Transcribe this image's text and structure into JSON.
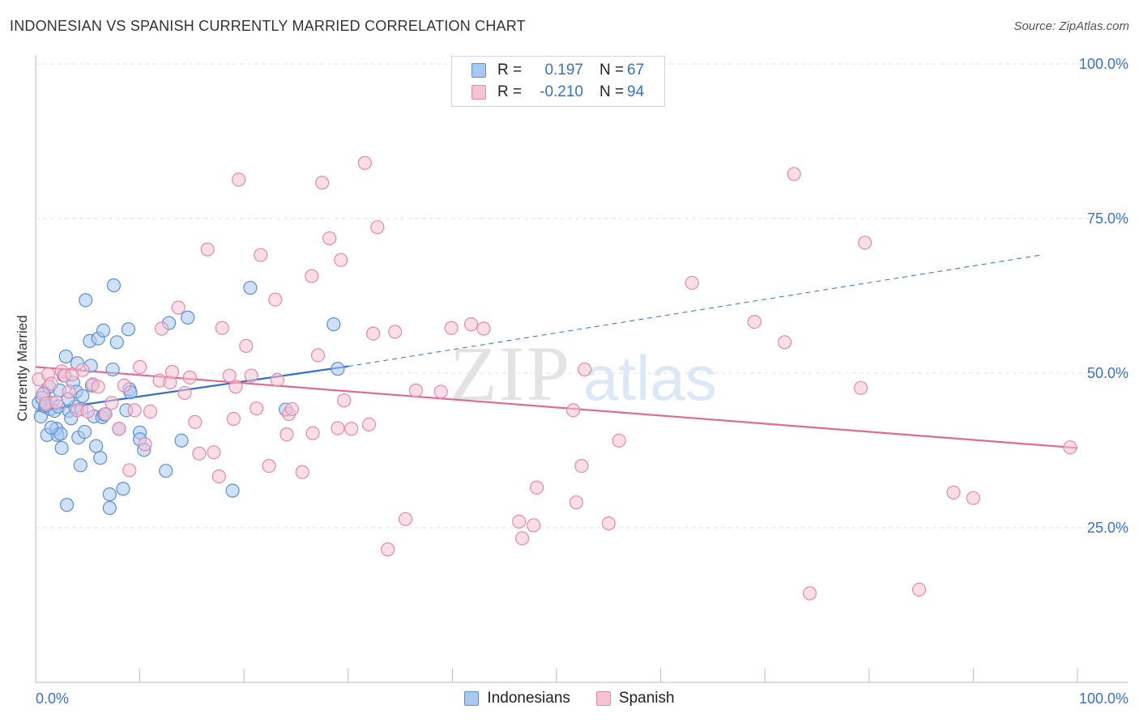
{
  "header": {
    "title": "INDONESIAN VS SPANISH CURRENTLY MARRIED CORRELATION CHART",
    "source": "Source: ZipAtlas.com"
  },
  "watermark": {
    "zip": "ZIP",
    "atlas": "atlas"
  },
  "legend": {
    "rows": [
      {
        "r_label": "R =",
        "r_value": "0.197",
        "n_label": "N =",
        "n_value": "67",
        "color": "#a9c8f0",
        "border": "#5b8fd6"
      },
      {
        "r_label": "R =",
        "r_value": "-0.210",
        "n_label": "N =",
        "n_value": "94",
        "color": "#f6c3d3",
        "border": "#e48aa8"
      }
    ]
  },
  "bottom_legend": [
    {
      "label": "Indonesians",
      "color": "#a9c8f0",
      "border": "#5b8fd6"
    },
    {
      "label": "Spanish",
      "color": "#f6c3d3",
      "border": "#e48aa8"
    }
  ],
  "chart_data": {
    "type": "scatter",
    "title": "INDONESIAN VS SPANISH CURRENTLY MARRIED CORRELATION CHART",
    "xlabel": "",
    "ylabel": "Currently Married",
    "xlim": [
      0,
      100
    ],
    "ylim": [
      0,
      100
    ],
    "x_tick_labels": [
      "0.0%",
      "100.0%"
    ],
    "y_ticks": [
      25,
      50,
      75,
      100
    ],
    "y_tick_labels": [
      "25.0%",
      "50.0%",
      "75.0%",
      "100.0%"
    ],
    "grid": true,
    "legend_position": "top-center",
    "series": [
      {
        "name": "Indonesians",
        "color": "#5b8fd6",
        "fill": "#a9c8f0",
        "trend": {
          "x0": 0,
          "y0": 43.8,
          "x1": 30,
          "y1": 51.1,
          "dash_to_x": 96.5,
          "dash_to_y": 69.1,
          "color": "#2f6fd0"
        },
        "points": [
          [
            0.3,
            45.2
          ],
          [
            0.5,
            43.0
          ],
          [
            0.8,
            46.8
          ],
          [
            0.9,
            44.6
          ],
          [
            1.1,
            40.0
          ],
          [
            1.3,
            47.8
          ],
          [
            1.4,
            44.2
          ],
          [
            1.6,
            45.2
          ],
          [
            1.8,
            43.9
          ],
          [
            2.0,
            41.0
          ],
          [
            2.1,
            40.0
          ],
          [
            2.2,
            44.6
          ],
          [
            2.4,
            40.2
          ],
          [
            2.5,
            37.9
          ],
          [
            2.7,
            49.6
          ],
          [
            2.9,
            52.7
          ],
          [
            3.0,
            28.7
          ],
          [
            3.2,
            43.9
          ],
          [
            3.4,
            42.7
          ],
          [
            3.6,
            48.5
          ],
          [
            3.8,
            44.6
          ],
          [
            3.9,
            47.0
          ],
          [
            4.0,
            51.6
          ],
          [
            4.1,
            39.6
          ],
          [
            4.3,
            35.1
          ],
          [
            4.4,
            44.2
          ],
          [
            4.5,
            46.3
          ],
          [
            4.7,
            40.5
          ],
          [
            4.8,
            61.8
          ],
          [
            5.2,
            55.2
          ],
          [
            5.3,
            51.2
          ],
          [
            5.4,
            48.0
          ],
          [
            5.6,
            43.0
          ],
          [
            5.8,
            38.2
          ],
          [
            6.0,
            55.6
          ],
          [
            6.2,
            36.3
          ],
          [
            6.4,
            42.9
          ],
          [
            6.5,
            56.9
          ],
          [
            6.6,
            43.3
          ],
          [
            7.1,
            28.2
          ],
          [
            7.1,
            30.4
          ],
          [
            7.4,
            50.6
          ],
          [
            7.5,
            64.2
          ],
          [
            7.8,
            55.0
          ],
          [
            8.0,
            41.0
          ],
          [
            8.4,
            31.3
          ],
          [
            8.7,
            44.0
          ],
          [
            8.9,
            57.1
          ],
          [
            9.0,
            47.4
          ],
          [
            9.1,
            46.9
          ],
          [
            10.0,
            40.4
          ],
          [
            10.0,
            39.3
          ],
          [
            10.4,
            37.6
          ],
          [
            12.5,
            34.2
          ],
          [
            12.8,
            58.1
          ],
          [
            14.0,
            39.1
          ],
          [
            14.6,
            59.0
          ],
          [
            18.9,
            31.0
          ],
          [
            20.6,
            63.8
          ],
          [
            24.0,
            44.1
          ],
          [
            28.6,
            57.9
          ],
          [
            29.0,
            50.7
          ],
          [
            0.6,
            46.0
          ],
          [
            1.0,
            44.8
          ],
          [
            1.5,
            41.2
          ],
          [
            3.1,
            45.8
          ],
          [
            2.3,
            47.2
          ]
        ]
      },
      {
        "name": "Spanish",
        "color": "#e48aa8",
        "fill": "#f6c3d3",
        "trend": {
          "x0": 0,
          "y0": 51.0,
          "x1": 100,
          "y1": 37.9,
          "color": "#e06a96"
        },
        "points": [
          [
            0.3,
            49.0
          ],
          [
            0.7,
            46.6
          ],
          [
            1.0,
            45.1
          ],
          [
            1.2,
            49.8
          ],
          [
            1.5,
            48.3
          ],
          [
            2.0,
            45.3
          ],
          [
            2.5,
            50.3
          ],
          [
            2.8,
            49.6
          ],
          [
            3.2,
            47.0
          ],
          [
            3.5,
            49.8
          ],
          [
            4.0,
            44.0
          ],
          [
            4.5,
            50.5
          ],
          [
            5.0,
            43.8
          ],
          [
            5.5,
            48.2
          ],
          [
            6.0,
            47.8
          ],
          [
            6.7,
            43.4
          ],
          [
            7.3,
            45.2
          ],
          [
            8.0,
            41.0
          ],
          [
            8.5,
            48.0
          ],
          [
            9.0,
            34.3
          ],
          [
            9.5,
            44.0
          ],
          [
            10.0,
            51.0
          ],
          [
            10.5,
            38.5
          ],
          [
            11.0,
            43.8
          ],
          [
            11.9,
            48.8
          ],
          [
            12.1,
            57.2
          ],
          [
            12.9,
            48.5
          ],
          [
            13.1,
            50.2
          ],
          [
            13.7,
            60.6
          ],
          [
            14.3,
            46.8
          ],
          [
            14.8,
            49.3
          ],
          [
            15.3,
            42.1
          ],
          [
            15.7,
            37.0
          ],
          [
            16.5,
            70.0
          ],
          [
            17.1,
            37.2
          ],
          [
            17.6,
            33.3
          ],
          [
            17.9,
            57.3
          ],
          [
            18.6,
            49.6
          ],
          [
            19.0,
            42.6
          ],
          [
            19.2,
            47.8
          ],
          [
            19.5,
            81.3
          ],
          [
            20.2,
            54.4
          ],
          [
            20.7,
            49.6
          ],
          [
            21.2,
            44.3
          ],
          [
            21.6,
            69.1
          ],
          [
            22.4,
            35.0
          ],
          [
            23.0,
            61.9
          ],
          [
            23.2,
            48.9
          ],
          [
            24.1,
            40.1
          ],
          [
            24.3,
            43.4
          ],
          [
            24.6,
            44.2
          ],
          [
            25.6,
            34.0
          ],
          [
            26.5,
            65.7
          ],
          [
            26.6,
            40.3
          ],
          [
            27.1,
            52.9
          ],
          [
            28.2,
            71.8
          ],
          [
            29.0,
            41.1
          ],
          [
            29.3,
            68.3
          ],
          [
            29.6,
            45.6
          ],
          [
            30.3,
            41.0
          ],
          [
            31.6,
            84.0
          ],
          [
            32.0,
            41.7
          ],
          [
            32.4,
            56.4
          ],
          [
            32.8,
            73.6
          ],
          [
            34.5,
            56.7
          ],
          [
            35.5,
            26.4
          ],
          [
            33.8,
            21.5
          ],
          [
            27.5,
            80.8
          ],
          [
            36.5,
            47.2
          ],
          [
            38.9,
            47.0
          ],
          [
            39.9,
            57.3
          ],
          [
            41.8,
            57.9
          ],
          [
            43.0,
            57.2
          ],
          [
            46.4,
            26.0
          ],
          [
            46.7,
            23.3
          ],
          [
            47.8,
            25.4
          ],
          [
            48.1,
            31.5
          ],
          [
            51.6,
            44.0
          ],
          [
            51.9,
            29.1
          ],
          [
            52.4,
            35.0
          ],
          [
            52.7,
            50.6
          ],
          [
            55.0,
            25.7
          ],
          [
            56.0,
            39.1
          ],
          [
            63.0,
            64.6
          ],
          [
            69.0,
            58.3
          ],
          [
            71.9,
            55.0
          ],
          [
            72.8,
            82.2
          ],
          [
            74.3,
            14.4
          ],
          [
            79.2,
            47.6
          ],
          [
            79.6,
            71.1
          ],
          [
            84.8,
            15.0
          ],
          [
            88.1,
            30.7
          ],
          [
            90.0,
            29.8
          ],
          [
            99.3,
            38.0
          ]
        ]
      }
    ]
  }
}
